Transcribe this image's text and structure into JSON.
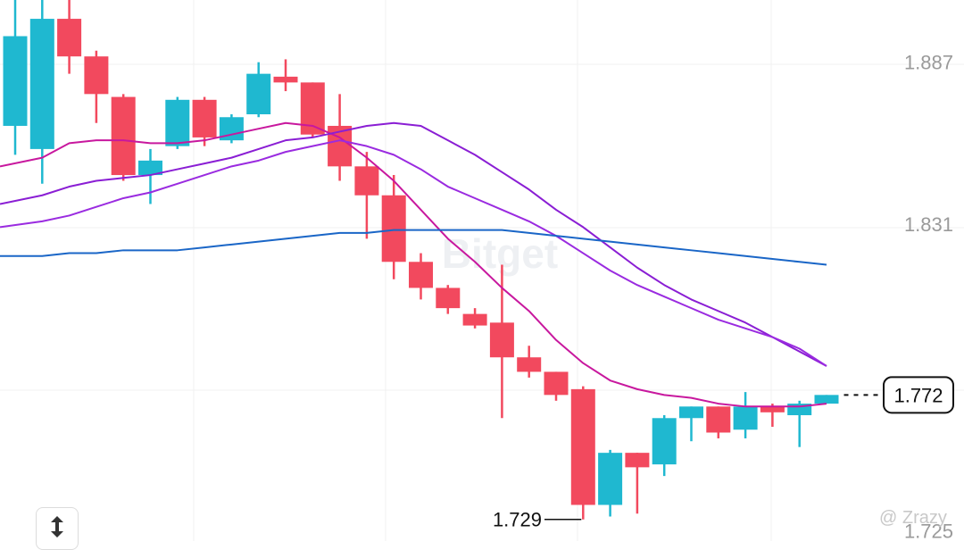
{
  "chart_data": {
    "type": "candlestick",
    "y_axis": {
      "position": "right",
      "tick_labels": [
        "1.887",
        "1.831",
        "1.725"
      ],
      "ticks": [
        1.887,
        1.831,
        1.725
      ],
      "visible_range": [
        1.7215,
        1.9085
      ]
    },
    "grid": true,
    "current_price": {
      "value": 1.772,
      "label": "1.772"
    },
    "low_marker": {
      "value": 1.729,
      "label": "1.729"
    },
    "candles": [
      {
        "o": 1.865,
        "h": 1.91,
        "l": 1.855,
        "c": 1.896
      },
      {
        "o": 1.857,
        "h": 1.915,
        "l": 1.845,
        "c": 1.902
      },
      {
        "o": 1.902,
        "h": 1.912,
        "l": 1.883,
        "c": 1.889
      },
      {
        "o": 1.889,
        "h": 1.891,
        "l": 1.866,
        "c": 1.876
      },
      {
        "o": 1.875,
        "h": 1.876,
        "l": 1.846,
        "c": 1.848
      },
      {
        "o": 1.848,
        "h": 1.857,
        "l": 1.838,
        "c": 1.853
      },
      {
        "o": 1.858,
        "h": 1.875,
        "l": 1.857,
        "c": 1.874
      },
      {
        "o": 1.874,
        "h": 1.875,
        "l": 1.858,
        "c": 1.861
      },
      {
        "o": 1.86,
        "h": 1.869,
        "l": 1.859,
        "c": 1.868
      },
      {
        "o": 1.869,
        "h": 1.887,
        "l": 1.868,
        "c": 1.883
      },
      {
        "o": 1.882,
        "h": 1.888,
        "l": 1.877,
        "c": 1.88
      },
      {
        "o": 1.88,
        "h": 1.88,
        "l": 1.861,
        "c": 1.862
      },
      {
        "o": 1.865,
        "h": 1.876,
        "l": 1.846,
        "c": 1.851
      },
      {
        "o": 1.851,
        "h": 1.856,
        "l": 1.826,
        "c": 1.841
      },
      {
        "o": 1.841,
        "h": 1.848,
        "l": 1.812,
        "c": 1.818
      },
      {
        "o": 1.818,
        "h": 1.821,
        "l": 1.805,
        "c": 1.809
      },
      {
        "o": 1.809,
        "h": 1.81,
        "l": 1.8,
        "c": 1.802
      },
      {
        "o": 1.8,
        "h": 1.802,
        "l": 1.795,
        "c": 1.796
      },
      {
        "o": 1.797,
        "h": 1.817,
        "l": 1.764,
        "c": 1.785
      },
      {
        "o": 1.785,
        "h": 1.789,
        "l": 1.778,
        "c": 1.78
      },
      {
        "o": 1.78,
        "h": 1.78,
        "l": 1.77,
        "c": 1.772
      },
      {
        "o": 1.774,
        "h": 1.775,
        "l": 1.729,
        "c": 1.734
      },
      {
        "o": 1.734,
        "h": 1.753,
        "l": 1.73,
        "c": 1.752
      },
      {
        "o": 1.752,
        "h": 1.752,
        "l": 1.731,
        "c": 1.747
      },
      {
        "o": 1.748,
        "h": 1.765,
        "l": 1.744,
        "c": 1.764
      },
      {
        "o": 1.764,
        "h": 1.768,
        "l": 1.756,
        "c": 1.768
      },
      {
        "o": 1.768,
        "h": 1.768,
        "l": 1.757,
        "c": 1.759
      },
      {
        "o": 1.76,
        "h": 1.773,
        "l": 1.757,
        "c": 1.768
      },
      {
        "o": 1.768,
        "h": 1.769,
        "l": 1.761,
        "c": 1.766
      },
      {
        "o": 1.765,
        "h": 1.77,
        "l": 1.754,
        "c": 1.769
      },
      {
        "o": 1.769,
        "h": 1.772,
        "l": 1.769,
        "c": 1.772
      }
    ],
    "moving_averages": [
      {
        "color": "#c8189e",
        "values": [
          1.851,
          1.854,
          1.859,
          1.86,
          1.86,
          1.859,
          1.859,
          1.86,
          1.862,
          1.864,
          1.866,
          1.865,
          1.861,
          1.854,
          1.846,
          1.836,
          1.826,
          1.818,
          1.809,
          1.801,
          1.791,
          1.783,
          1.777,
          1.774,
          1.772,
          1.771,
          1.769,
          1.768,
          1.768,
          1.768,
          1.769
        ]
      },
      {
        "color": "#8a1ed4",
        "values": [
          1.838,
          1.841,
          1.844,
          1.846,
          1.847,
          1.848,
          1.85,
          1.852,
          1.854,
          1.857,
          1.86,
          1.861,
          1.863,
          1.865,
          1.866,
          1.865,
          1.86,
          1.855,
          1.849,
          1.843,
          1.836,
          1.83,
          1.823,
          1.816,
          1.81,
          1.805,
          1.801,
          1.797,
          1.792,
          1.787,
          1.782
        ]
      },
      {
        "color": "#9a2be0",
        "values": [
          1.83,
          1.832,
          1.834,
          1.837,
          1.84,
          1.842,
          1.845,
          1.848,
          1.851,
          1.853,
          1.856,
          1.858,
          1.86,
          1.858,
          1.855,
          1.85,
          1.844,
          1.84,
          1.836,
          1.832,
          1.827,
          1.821,
          1.815,
          1.81,
          1.806,
          1.802,
          1.798,
          1.795,
          1.792,
          1.788,
          1.782
        ]
      },
      {
        "color": "#1a66c7",
        "values": [
          1.82,
          1.82,
          1.821,
          1.821,
          1.822,
          1.822,
          1.822,
          1.823,
          1.824,
          1.825,
          1.826,
          1.827,
          1.828,
          1.828,
          1.829,
          1.829,
          1.829,
          1.829,
          1.829,
          1.828,
          1.827,
          1.826,
          1.825,
          1.824,
          1.823,
          1.822,
          1.821,
          1.82,
          1.819,
          1.818,
          1.817
        ]
      }
    ],
    "colors": {
      "up": "#1fb8d0",
      "down": "#f2495e",
      "grid": "#f1f1f1",
      "tick_text": "#9a9a9a"
    }
  },
  "watermark": "Bitget",
  "credit": "@ Zrazy",
  "expand_button_icon": "expand-vertical-icon"
}
